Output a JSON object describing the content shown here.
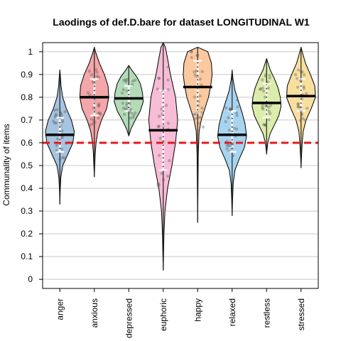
{
  "chart_data": {
    "type": "violin",
    "title": "Laodings of def.D.bare for dataset LONGITUDINAL W1",
    "xlabel": "",
    "ylabel": "Communality of items",
    "ylim": [
      -0.04,
      1.04
    ],
    "yticks": [
      0,
      0.1,
      0.2,
      0.3,
      0.4,
      0.5,
      0.6,
      0.7,
      0.8,
      0.9,
      1
    ],
    "ytick_labels": [
      "0",
      "0.1",
      "0.2",
      "0.3",
      "0.4",
      "0.5",
      "0.6",
      "0.7",
      "0.8",
      "0.9",
      "1"
    ],
    "grid": true,
    "reference_line": {
      "value": 0.6,
      "color": "#e31a1c",
      "style": "dashed"
    },
    "categories": [
      "anger",
      "anxious",
      "depressed",
      "euphoric",
      "happy",
      "relaxed",
      "restless",
      "stressed"
    ],
    "series": [
      {
        "name": "anger",
        "color": "#a6c4e0",
        "mean": 0.635,
        "min": 0.33,
        "max": 0.92,
        "q1": 0.56,
        "q3": 0.71,
        "width": 0.42,
        "profile": [
          [
            0.33,
            0.0
          ],
          [
            0.4,
            0.03
          ],
          [
            0.45,
            0.07
          ],
          [
            0.5,
            0.2
          ],
          [
            0.55,
            0.55
          ],
          [
            0.6,
            0.9
          ],
          [
            0.65,
            1.0
          ],
          [
            0.7,
            0.8
          ],
          [
            0.75,
            0.45
          ],
          [
            0.8,
            0.2
          ],
          [
            0.85,
            0.08
          ],
          [
            0.9,
            0.03
          ],
          [
            0.92,
            0.0
          ]
        ]
      },
      {
        "name": "anxious",
        "color": "#f4a6a8",
        "mean": 0.8,
        "min": 0.45,
        "max": 1.02,
        "q1": 0.72,
        "q3": 0.88,
        "width": 0.42,
        "profile": [
          [
            0.45,
            0.0
          ],
          [
            0.5,
            0.03
          ],
          [
            0.55,
            0.06
          ],
          [
            0.6,
            0.12
          ],
          [
            0.65,
            0.25
          ],
          [
            0.7,
            0.5
          ],
          [
            0.75,
            0.85
          ],
          [
            0.8,
            1.0
          ],
          [
            0.85,
            0.95
          ],
          [
            0.9,
            0.7
          ],
          [
            0.95,
            0.35
          ],
          [
            1.0,
            0.08
          ],
          [
            1.02,
            0.0
          ]
        ]
      },
      {
        "name": "depressed",
        "color": "#b3dbb8",
        "mean": 0.795,
        "min": 0.63,
        "max": 0.94,
        "q1": 0.74,
        "q3": 0.85,
        "width": 0.42,
        "profile": [
          [
            0.63,
            0.0
          ],
          [
            0.66,
            0.15
          ],
          [
            0.7,
            0.45
          ],
          [
            0.74,
            0.8
          ],
          [
            0.78,
            1.0
          ],
          [
            0.82,
            0.95
          ],
          [
            0.86,
            0.8
          ],
          [
            0.89,
            0.55
          ],
          [
            0.92,
            0.2
          ],
          [
            0.94,
            0.0
          ]
        ]
      },
      {
        "name": "euphoric",
        "color": "#f7bcd6",
        "mean": 0.655,
        "min": 0.04,
        "max": 1.04,
        "q1": 0.48,
        "q3": 0.83,
        "width": 0.42,
        "profile": [
          [
            0.04,
            0.0
          ],
          [
            0.1,
            0.02
          ],
          [
            0.2,
            0.05
          ],
          [
            0.3,
            0.12
          ],
          [
            0.4,
            0.3
          ],
          [
            0.5,
            0.6
          ],
          [
            0.6,
            0.85
          ],
          [
            0.7,
            1.0
          ],
          [
            0.8,
            0.85
          ],
          [
            0.9,
            0.5
          ],
          [
            0.97,
            0.3
          ],
          [
            1.02,
            0.15
          ],
          [
            1.04,
            0.0
          ]
        ]
      },
      {
        "name": "happy",
        "color": "#fbc9a0",
        "mean": 0.845,
        "min": 0.25,
        "max": 1.02,
        "q1": 0.73,
        "q3": 0.96,
        "width": 0.42,
        "profile": [
          [
            0.25,
            0.0
          ],
          [
            0.4,
            0.02
          ],
          [
            0.55,
            0.04
          ],
          [
            0.65,
            0.1
          ],
          [
            0.7,
            0.25
          ],
          [
            0.75,
            0.5
          ],
          [
            0.8,
            0.75
          ],
          [
            0.85,
            0.9
          ],
          [
            0.9,
            1.0
          ],
          [
            0.95,
            0.95
          ],
          [
            1.0,
            0.7
          ],
          [
            1.02,
            0.0
          ]
        ]
      },
      {
        "name": "relaxed",
        "color": "#a8d4f0",
        "mean": 0.635,
        "min": 0.28,
        "max": 0.92,
        "q1": 0.56,
        "q3": 0.74,
        "width": 0.42,
        "profile": [
          [
            0.28,
            0.0
          ],
          [
            0.35,
            0.03
          ],
          [
            0.42,
            0.07
          ],
          [
            0.48,
            0.2
          ],
          [
            0.53,
            0.5
          ],
          [
            0.58,
            0.85
          ],
          [
            0.63,
            1.0
          ],
          [
            0.68,
            0.9
          ],
          [
            0.73,
            0.7
          ],
          [
            0.78,
            0.45
          ],
          [
            0.83,
            0.2
          ],
          [
            0.88,
            0.06
          ],
          [
            0.92,
            0.0
          ]
        ]
      },
      {
        "name": "restless",
        "color": "#dcecaa",
        "mean": 0.775,
        "min": 0.55,
        "max": 0.97,
        "q1": 0.71,
        "q3": 0.86,
        "width": 0.42,
        "profile": [
          [
            0.55,
            0.0
          ],
          [
            0.6,
            0.08
          ],
          [
            0.64,
            0.25
          ],
          [
            0.68,
            0.55
          ],
          [
            0.72,
            0.85
          ],
          [
            0.76,
            1.0
          ],
          [
            0.8,
            0.95
          ],
          [
            0.84,
            0.8
          ],
          [
            0.88,
            0.55
          ],
          [
            0.92,
            0.25
          ],
          [
            0.97,
            0.0
          ]
        ]
      },
      {
        "name": "stressed",
        "color": "#f8df9e",
        "mean": 0.805,
        "min": 0.49,
        "max": 1.02,
        "q1": 0.74,
        "q3": 0.88,
        "width": 0.42,
        "profile": [
          [
            0.49,
            0.0
          ],
          [
            0.55,
            0.04
          ],
          [
            0.6,
            0.08
          ],
          [
            0.65,
            0.15
          ],
          [
            0.7,
            0.35
          ],
          [
            0.75,
            0.7
          ],
          [
            0.8,
            1.0
          ],
          [
            0.85,
            0.95
          ],
          [
            0.9,
            0.65
          ],
          [
            0.95,
            0.3
          ],
          [
            1.0,
            0.08
          ],
          [
            1.02,
            0.0
          ]
        ]
      }
    ]
  }
}
